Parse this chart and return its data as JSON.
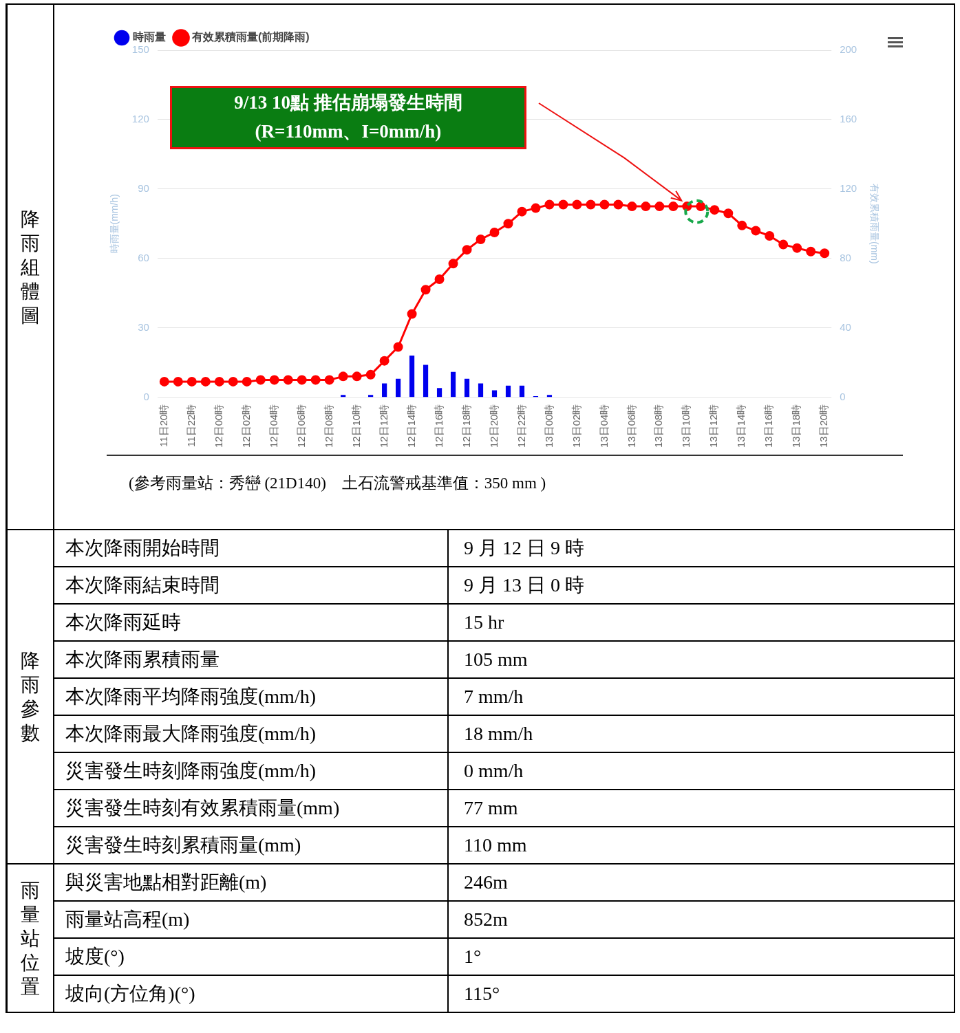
{
  "chart_data": [
    {
      "type": "bar",
      "title": "降雨組體圖",
      "categories": [
        "11日20時",
        null,
        "11日22時",
        null,
        "12日00時",
        null,
        "12日02時",
        null,
        "12日04時",
        null,
        "12日06時",
        null,
        "12日08時",
        null,
        "12日10時",
        null,
        "12日12時",
        null,
        "12日14時",
        null,
        "12日16時",
        null,
        "12日18時",
        null,
        "12日20時",
        null,
        "12日22時",
        null,
        "13日00時",
        null,
        "13日02時",
        null,
        "13日04時",
        null,
        "13日06時",
        null,
        "13日08時",
        null,
        "13日10時",
        null,
        "13日12時",
        null,
        "13日14時",
        null,
        "13日16時",
        null,
        "13日18時",
        null,
        "13日20時"
      ],
      "series": [
        {
          "name": "時雨量",
          "type": "bar",
          "color": "#0000ee",
          "values": [
            null,
            null,
            null,
            null,
            null,
            null,
            null,
            null,
            null,
            null,
            null,
            null,
            null,
            1,
            0,
            1,
            6,
            8,
            18,
            14,
            4,
            11,
            8,
            6,
            3,
            5,
            5,
            0.5,
            1,
            null,
            null,
            null,
            null,
            null,
            null,
            null,
            null,
            null,
            null,
            null,
            null,
            null,
            null,
            null,
            null,
            null,
            null,
            null,
            null
          ]
        },
        {
          "name": "有效累積雨量(前期降雨)",
          "type": "line",
          "axis": "y2",
          "color": "#ff0000",
          "values": [
            9,
            9,
            9,
            9,
            9,
            9,
            9,
            10,
            10,
            10,
            10,
            10,
            10,
            12,
            12,
            13,
            21,
            29,
            48,
            62,
            68,
            77,
            85,
            91,
            95,
            100,
            107,
            109,
            111,
            111,
            111,
            111,
            111,
            111,
            110,
            110,
            110,
            110,
            110,
            110,
            108,
            106,
            99,
            96,
            93,
            88,
            86,
            84,
            83
          ]
        }
      ],
      "ylabel": "時雨量(mm/h)",
      "y2label": "有效累積雨量(mm)",
      "ylim": [
        0,
        150
      ],
      "yticks": [
        0,
        30,
        60,
        90,
        120,
        150
      ],
      "y2lim": [
        0,
        200
      ],
      "y2ticks": [
        0,
        40,
        80,
        120,
        160,
        200
      ],
      "grid": "y",
      "legend": "top left",
      "marker": "circle",
      "annotations": [
        "9/13 10點 推估崩塌發生時間\n(R=110mm、I=0mm/h)",
        "(參考雨量站：秀巒 (21D140)　土石流警戒基準值：350 mm )"
      ]
    },
    {
      "type": "other",
      "title": "降雨參數",
      "annotations": [
        "本次降雨開始時間",
        "9 月 12 日 9 時",
        "本次降雨結束時間",
        "9 月 13 日 0 時",
        "本次降雨延時",
        "15 hr",
        "本次降雨累積雨量",
        "105 mm",
        "本次降雨平均降雨強度(mm/h)",
        "7 mm/h",
        "本次降雨最大降雨強度(mm/h)",
        "18 mm/h",
        "災害發生時刻降雨強度(mm/h)",
        "0 mm/h",
        "災害發生時刻有效累積雨量(mm)",
        "77 mm",
        "災害發生時刻累積雨量(mm)",
        "110 mm"
      ]
    },
    {
      "type": "other",
      "title": "雨量站位置",
      "annotations": [
        "與災害地點相對距離(m)",
        "246m",
        "雨量站高程(m)",
        "852m",
        "坡度(°)",
        "1°",
        "坡向(方位角)(°)",
        "115°"
      ]
    }
  ]
}
